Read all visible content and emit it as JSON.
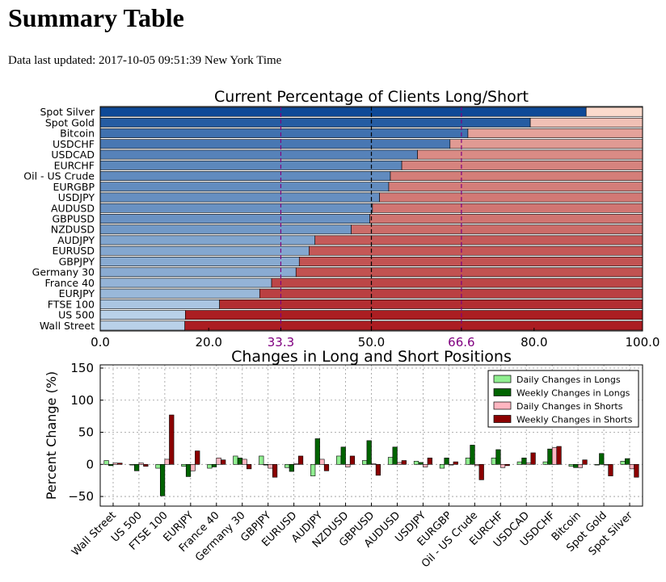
{
  "page": {
    "title": "Summary Table",
    "updated": "Data last updated: 2017-10-05 09:51:39 New York Time"
  },
  "chart_data": [
    {
      "type": "bar",
      "orientation": "horizontal",
      "stacked": true,
      "title": "Current Percentage of Clients Long/Short",
      "categories": [
        "Spot Silver",
        "Spot Gold",
        "Bitcoin",
        "USDCHF",
        "USDCAD",
        "EURCHF",
        "Oil - US Crude",
        "EURGBP",
        "USDJPY",
        "AUDUSD",
        "GBPUSD",
        "NZDUSD",
        "AUDJPY",
        "EURUSD",
        "GBPJPY",
        "Germany 30",
        "France 40",
        "EURJPY",
        "FTSE 100",
        "US 500",
        "Wall Street"
      ],
      "long_pct": [
        89.6,
        79.3,
        67.8,
        64.5,
        58.5,
        55.6,
        53.5,
        53.2,
        51.5,
        50.2,
        49.7,
        46.3,
        39.6,
        38.5,
        36.7,
        36.1,
        31.6,
        29.4,
        22.0,
        15.7,
        15.6
      ],
      "xlim": [
        0,
        100
      ],
      "xticks": [
        "0.0",
        "20.0",
        "33.3",
        "50.0",
        "66.6",
        "80.0",
        "100.0"
      ],
      "reference_lines": [
        "33.3",
        "50.0",
        "66.6"
      ],
      "grid": false
    },
    {
      "type": "bar",
      "title": "Changes in Long and Short Positions",
      "ylabel": "Percent Change (%)",
      "ylim": [
        -65,
        155
      ],
      "yticks": [
        "150",
        "100",
        "50",
        "0",
        "−50"
      ],
      "grid": true,
      "legend_position": "top-right",
      "categories": [
        "Wall Street",
        "US 500",
        "FTSE 100",
        "EURJPY",
        "France 40",
        "Germany 30",
        "GBPJPY",
        "EURUSD",
        "AUDJPY",
        "NZDUSD",
        "GBPUSD",
        "AUDUSD",
        "USDJPY",
        "EURGBP",
        "Oil - US Crude",
        "EURCHF",
        "USDCAD",
        "USDCHF",
        "Bitcoin",
        "Spot Gold",
        "Spot Silver"
      ],
      "series": [
        {
          "name": "Daily Changes in Longs",
          "color": "#90ee90",
          "values": [
            6,
            0,
            -6,
            -3,
            -6,
            13,
            13,
            -5,
            -18,
            13,
            6,
            11,
            5,
            -6,
            10,
            10,
            4,
            4,
            -3,
            0,
            5
          ]
        },
        {
          "name": "Weekly Changes in Longs",
          "color": "#006400",
          "values": [
            -2,
            -10,
            -49,
            -19,
            -4,
            10,
            0,
            -11,
            40,
            27,
            37,
            27,
            3,
            10,
            30,
            23,
            10,
            24,
            -5,
            17,
            9
          ]
        },
        {
          "name": "Daily Changes in Shorts",
          "color": "#ffb6c1",
          "values": [
            2,
            2,
            8,
            -10,
            10,
            8,
            -6,
            1,
            8,
            -4,
            1,
            3,
            -4,
            -1,
            -2,
            -5,
            2,
            26,
            -5,
            0,
            -7
          ]
        },
        {
          "name": "Weekly Changes in Shorts",
          "color": "#8b0000",
          "values": [
            2,
            -3,
            77,
            21,
            7,
            -7,
            -20,
            13,
            -10,
            13,
            -17,
            6,
            10,
            4,
            -24,
            -2,
            18,
            28,
            7,
            -18,
            -20
          ]
        }
      ]
    }
  ]
}
